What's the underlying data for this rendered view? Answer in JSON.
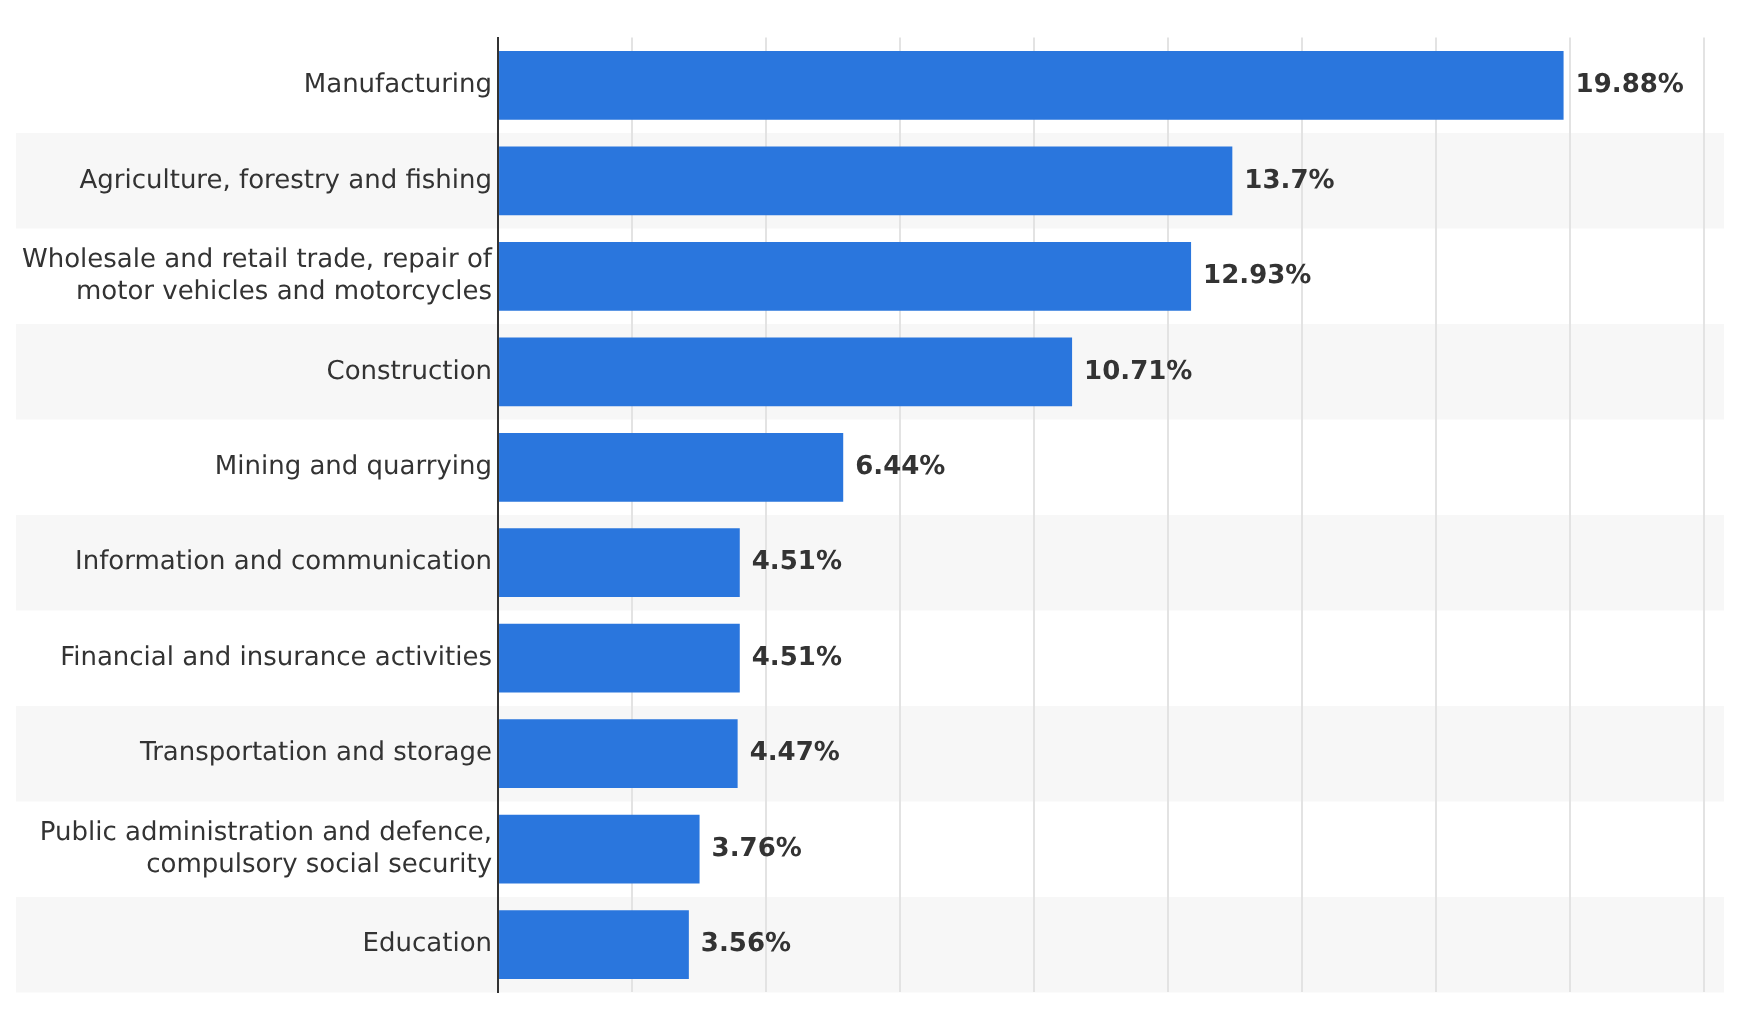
{
  "chart_data": {
    "type": "bar",
    "orientation": "horizontal",
    "categories": [
      "Manufacturing",
      "Agriculture, forestry and fishing",
      "Wholesale and retail trade, repair of motor vehicles and motorcycles",
      "Construction",
      "Mining and quarrying",
      "Information and communication",
      "Financial and insurance activities",
      "Transportation and storage",
      "Public administration and defence, compulsory social security",
      "Education"
    ],
    "values": [
      19.88,
      13.7,
      12.93,
      10.71,
      6.44,
      4.51,
      4.51,
      4.47,
      3.76,
      3.56
    ],
    "value_labels": [
      "19.88%",
      "13.7%",
      "12.93%",
      "10.71%",
      "6.44%",
      "4.51%",
      "4.51%",
      "4.47%",
      "3.76%",
      "3.56%"
    ],
    "color": "#2a76dd",
    "xlim": [
      0,
      22.5
    ],
    "xticks": [
      {
        "value": 0,
        "label": null
      },
      {
        "value": 2.5,
        "label": null
      },
      {
        "value": 5,
        "label": null
      },
      {
        "value": 7.5,
        "label": null
      },
      {
        "value": 10,
        "label": null
      },
      {
        "value": 12.5,
        "label": null
      },
      {
        "value": 15,
        "label": null
      },
      {
        "value": 17.5,
        "label": null
      },
      {
        "value": 20,
        "label": null
      },
      {
        "value": 22.5,
        "label": null
      }
    ],
    "grid": "x",
    "tick_labels": "y",
    "legend": false
  }
}
